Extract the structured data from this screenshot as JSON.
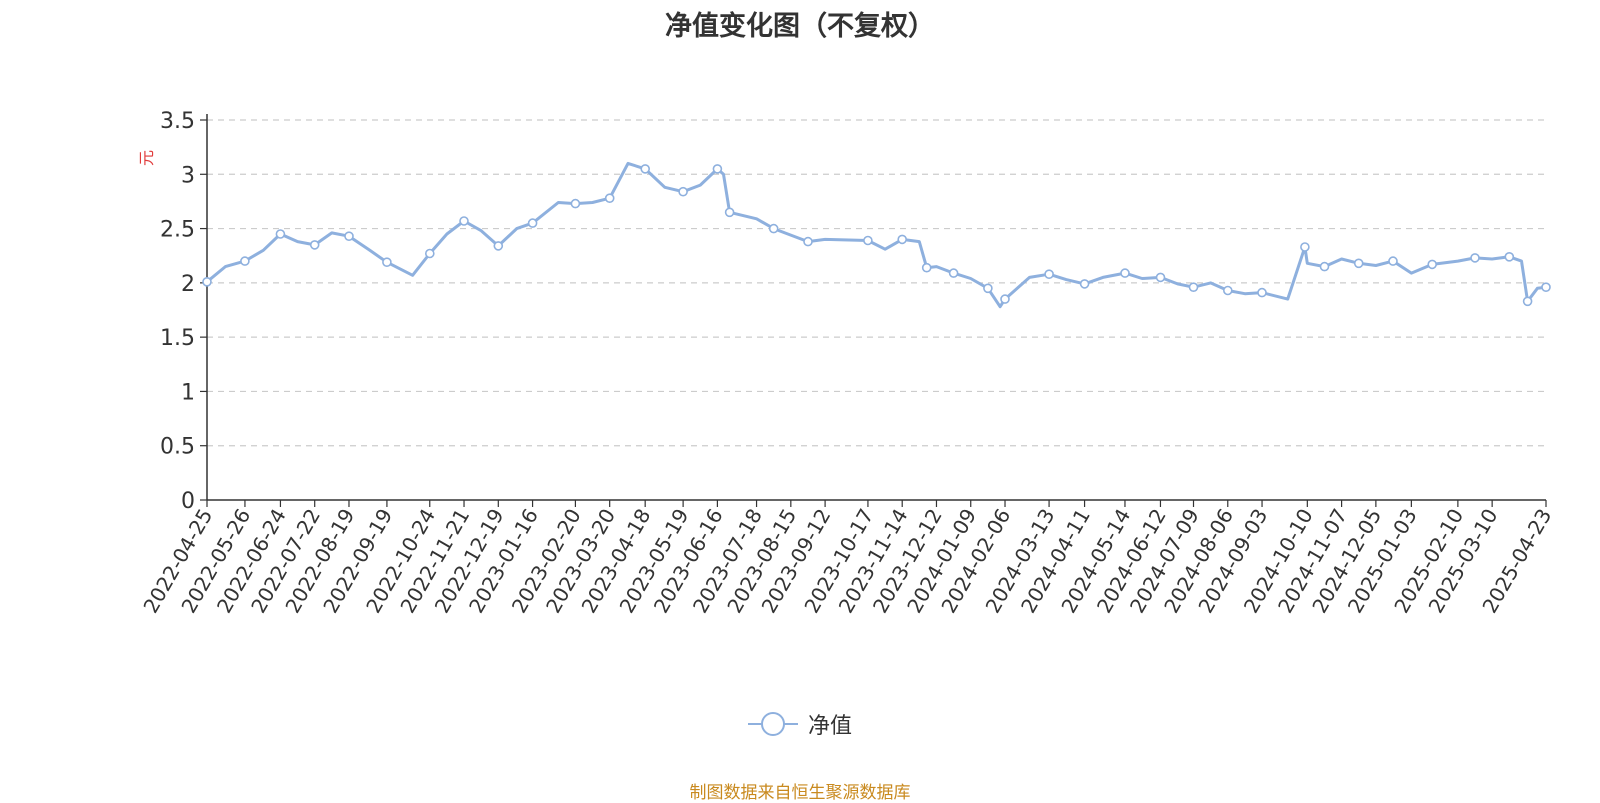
{
  "chart_data": {
    "type": "line",
    "title": "净值变化图（不复权）",
    "ylabel": "元",
    "ylim": [
      0,
      3.5
    ],
    "yticks": [
      "0",
      "0.5",
      "1",
      "1.5",
      "2",
      "2.5",
      "3",
      "3.5"
    ],
    "grid": true,
    "legend_position": "bottom-center",
    "x_tick_labels": [
      "2022-04-25",
      "2022-05-26",
      "2022-06-24",
      "2022-07-22",
      "2022-08-19",
      "2022-09-19",
      "2022-10-24",
      "2022-11-21",
      "2022-12-19",
      "2023-01-16",
      "2023-02-20",
      "2023-03-20",
      "2023-04-18",
      "2023-05-19",
      "2023-06-16",
      "2023-07-18",
      "2023-08-15",
      "2023-09-12",
      "2023-10-17",
      "2023-11-14",
      "2023-12-12",
      "2024-01-09",
      "2024-02-06",
      "2024-03-13",
      "2024-04-11",
      "2024-05-14",
      "2024-06-12",
      "2024-07-09",
      "2024-08-06",
      "2024-09-03",
      "2024-10-10",
      "2024-11-07",
      "2024-12-05",
      "2025-01-03",
      "2025-02-10",
      "2025-03-10",
      "2025-04-23"
    ],
    "series": [
      {
        "name": "净值",
        "color": "#8eb0de",
        "x": [
          "2022-04-25",
          "2022-05-10",
          "2022-05-26",
          "2022-06-10",
          "2022-06-24",
          "2022-07-08",
          "2022-07-22",
          "2022-08-05",
          "2022-08-19",
          "2022-09-05",
          "2022-09-19",
          "2022-10-10",
          "2022-10-24",
          "2022-11-07",
          "2022-11-21",
          "2022-12-05",
          "2022-12-19",
          "2023-01-03",
          "2023-01-16",
          "2023-02-06",
          "2023-02-20",
          "2023-03-06",
          "2023-03-20",
          "2023-04-04",
          "2023-04-18",
          "2023-05-04",
          "2023-05-19",
          "2023-06-02",
          "2023-06-16",
          "2023-06-21",
          "2023-06-26",
          "2023-07-18",
          "2023-08-01",
          "2023-08-15",
          "2023-08-29",
          "2023-09-12",
          "2023-10-17",
          "2023-10-31",
          "2023-11-14",
          "2023-11-28",
          "2023-12-04",
          "2023-12-12",
          "2023-12-26",
          "2024-01-09",
          "2024-01-23",
          "2024-02-02",
          "2024-02-06",
          "2024-02-26",
          "2024-03-13",
          "2024-03-27",
          "2024-04-11",
          "2024-04-26",
          "2024-05-14",
          "2024-05-28",
          "2024-06-12",
          "2024-06-26",
          "2024-07-09",
          "2024-07-23",
          "2024-08-06",
          "2024-08-20",
          "2024-09-03",
          "2024-09-24",
          "2024-10-08",
          "2024-10-10",
          "2024-10-24",
          "2024-11-07",
          "2024-11-21",
          "2024-12-05",
          "2024-12-19",
          "2025-01-03",
          "2025-01-20",
          "2025-02-10",
          "2025-02-24",
          "2025-03-10",
          "2025-03-24",
          "2025-04-03",
          "2025-04-08",
          "2025-04-16",
          "2025-04-23"
        ],
        "y": [
          2.01,
          2.15,
          2.2,
          2.3,
          2.45,
          2.38,
          2.35,
          2.46,
          2.43,
          2.3,
          2.19,
          2.07,
          2.27,
          2.45,
          2.57,
          2.48,
          2.34,
          2.5,
          2.55,
          2.74,
          2.73,
          2.74,
          2.78,
          3.1,
          3.05,
          2.88,
          2.84,
          2.9,
          3.05,
          3.0,
          2.65,
          2.59,
          2.5,
          2.44,
          2.38,
          2.4,
          2.39,
          2.31,
          2.4,
          2.38,
          2.14,
          2.15,
          2.09,
          2.04,
          1.95,
          1.78,
          1.85,
          2.05,
          2.08,
          2.03,
          1.99,
          2.05,
          2.09,
          2.04,
          2.05,
          1.99,
          1.96,
          2.0,
          1.93,
          1.9,
          1.91,
          1.85,
          2.33,
          2.18,
          2.15,
          2.22,
          2.18,
          2.16,
          2.2,
          2.09,
          2.17,
          2.2,
          2.23,
          2.22,
          2.24,
          2.2,
          1.83,
          1.95,
          1.96
        ]
      }
    ]
  },
  "source_text": "制图数据来自恒生聚源数据库"
}
